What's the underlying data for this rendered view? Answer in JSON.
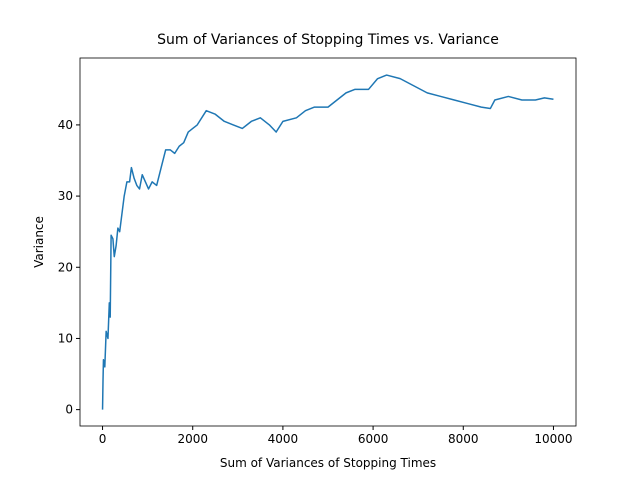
{
  "chart_data": {
    "type": "line",
    "title": "Sum of Variances of Stopping Times vs. Variance",
    "x_label": "Sum of Variances of Stopping Times",
    "y_label": "Variance",
    "x": [
      0,
      10,
      20,
      50,
      80,
      120,
      150,
      170,
      190,
      230,
      260,
      300,
      340,
      380,
      420,
      480,
      540,
      600,
      640,
      700,
      760,
      820,
      880,
      950,
      1020,
      1100,
      1200,
      1300,
      1400,
      1500,
      1600,
      1700,
      1800,
      1900,
      2000,
      2100,
      2300,
      2500,
      2700,
      2900,
      3100,
      3300,
      3500,
      3700,
      3850,
      4000,
      4300,
      4500,
      4700,
      5000,
      5200,
      5400,
      5600,
      5900,
      6100,
      6300,
      6600,
      6900,
      7200,
      7500,
      7800,
      8100,
      8400,
      8600,
      8700,
      9000,
      9300,
      9600,
      9800,
      10000
    ],
    "series": [
      {
        "name": "Variance",
        "color": "#1f77b4",
        "values": [
          0,
          4,
          7,
          6,
          11,
          10,
          15,
          13,
          24.5,
          24,
          21.5,
          23,
          25.5,
          25,
          27,
          30,
          32,
          32,
          34,
          32.5,
          31.5,
          31,
          33,
          32,
          31,
          32,
          31.5,
          34,
          36.5,
          36.5,
          36,
          37,
          37.5,
          39,
          39.5,
          40,
          42,
          41.5,
          40.5,
          40,
          39.5,
          40.5,
          41,
          40,
          39,
          40.5,
          41,
          42,
          42.5,
          42.5,
          43.5,
          44.5,
          45,
          45,
          46.5,
          47,
          46.5,
          45.5,
          44.5,
          44,
          43.5,
          43,
          42.5,
          42.3,
          43.5,
          44,
          43.5,
          43.5,
          43.8,
          43.6
        ]
      }
    ],
    "xlim": [
      -500,
      10500
    ],
    "ylim": [
      -2.3,
      49.4
    ],
    "xticks": [
      0,
      2000,
      4000,
      6000,
      8000,
      10000
    ],
    "yticks": [
      0,
      10,
      20,
      30,
      40
    ],
    "grid": false
  }
}
